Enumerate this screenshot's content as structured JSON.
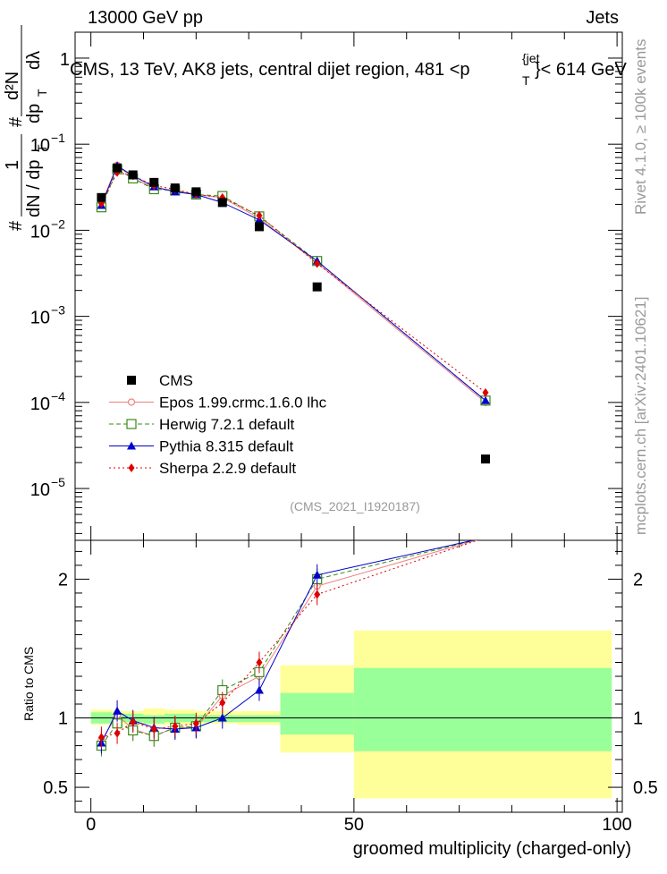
{
  "header": {
    "left": "13000 GeV pp",
    "right": "Jets"
  },
  "side_labels": {
    "rivet": "Rivet 4.1.0, ≥ 100k events",
    "mcplots": "mcplots.cern.ch [arXiv:2401.10621]"
  },
  "chart_data": {
    "type": "line",
    "title_main": "CMS, 13 TeV, AK8 jets, central dijet region, 481 <p",
    "title_sup": "{jet",
    "title_sub": "T",
    "title_end": "}< 614 GeV",
    "watermark": "(CMS_2021_I1920187)",
    "ylabel_top": {
      "frac1_num": "1",
      "frac1_den_a": "dN / dp",
      "frac1_den_sub": "T",
      "frac2_num": "d²N",
      "frac2_den_a": "dp",
      "frac2_den_sub": "T",
      "frac2_den_b": "dλ",
      "hash": "#"
    },
    "ylabel_ratio": "Ratio to CMS",
    "xlabel": "groomed multiplicity (charged-only)",
    "xlim": [
      -3,
      101
    ],
    "ylim_log": [
      2.5e-06,
      2
    ],
    "ylim_ratio": [
      0.32,
      2.28
    ],
    "x_ticks": [
      {
        "value": 0,
        "label": "0"
      },
      {
        "value": 50,
        "label": "50"
      },
      {
        "value": 100,
        "label": "100"
      }
    ],
    "y_ticks_log": [
      {
        "value": 1,
        "base": "1",
        "exp": ""
      },
      {
        "value": 0.1,
        "base": "10",
        "exp": "−1"
      },
      {
        "value": 0.01,
        "base": "10",
        "exp": "−2"
      },
      {
        "value": 0.001,
        "base": "10",
        "exp": "−3"
      },
      {
        "value": 0.0001,
        "base": "10",
        "exp": "−4"
      },
      {
        "value": 1e-05,
        "base": "10",
        "exp": "−5"
      }
    ],
    "y_ticks_ratio": [
      {
        "value": 0.5,
        "label": "0.5"
      },
      {
        "value": 1,
        "label": "1"
      },
      {
        "value": 2,
        "label": "2"
      }
    ],
    "bands": [
      {
        "x": [
          0,
          4
        ],
        "inner": [
          0.96,
          1.04
        ],
        "outer": [
          0.95,
          1.06
        ]
      },
      {
        "x": [
          4,
          10
        ],
        "inner": [
          0.97,
          1.03
        ],
        "outer": [
          0.95,
          1.05
        ]
      },
      {
        "x": [
          10,
          14
        ],
        "inner": [
          0.96,
          1.02
        ],
        "outer": [
          0.95,
          1.07
        ]
      },
      {
        "x": [
          14,
          20
        ],
        "inner": [
          0.97,
          1.03
        ],
        "outer": [
          0.95,
          1.06
        ]
      },
      {
        "x": [
          20,
          28
        ],
        "inner": [
          0.97,
          1.02
        ],
        "outer": [
          0.96,
          1.05
        ]
      },
      {
        "x": [
          28,
          36
        ],
        "inner": [
          0.97,
          1.02
        ],
        "outer": [
          0.95,
          1.05
        ]
      },
      {
        "x": [
          36,
          50
        ],
        "inner": [
          0.88,
          1.18
        ],
        "outer": [
          0.75,
          1.38
        ]
      },
      {
        "x": [
          50,
          99
        ],
        "inner": [
          0.76,
          1.36
        ],
        "outer": [
          0.42,
          1.63
        ]
      }
    ],
    "x": [
      2,
      5,
      8,
      12,
      16,
      20,
      25,
      32,
      43,
      75
    ],
    "cms": [
      0.024,
      0.053,
      0.044,
      0.036,
      0.031,
      0.028,
      0.021,
      0.011,
      0.0022,
      2.2e-05
    ],
    "series": [
      {
        "name": "Epos 1.99.crmc.1.6.0 lhc",
        "color": "#f08080",
        "marker": "circle-open",
        "dash": "",
        "values": [
          0.0205,
          0.057,
          0.04,
          0.031,
          0.029,
          0.026,
          0.024,
          0.0138,
          0.0042,
          0.0001
        ],
        "ratio": [
          0.84,
          1.02,
          0.92,
          0.87,
          0.93,
          0.93,
          1.16,
          1.3,
          1.95,
          2.3
        ]
      },
      {
        "name": "Herwig 7.2.1 default",
        "color": "#3a8a1a",
        "marker": "square-open",
        "dash": "5,3",
        "values": [
          0.0185,
          0.051,
          0.04,
          0.03,
          0.029,
          0.026,
          0.025,
          0.0145,
          0.0044,
          0.000105
        ],
        "ratio": [
          0.8,
          0.96,
          0.91,
          0.87,
          0.93,
          0.94,
          1.2,
          1.33,
          2.0,
          2.3
        ]
      },
      {
        "name": "Pythia 8.315 default",
        "color": "#0000cc",
        "marker": "triangle",
        "dash": "",
        "values": [
          0.0195,
          0.056,
          0.043,
          0.032,
          0.028,
          0.026,
          0.021,
          0.0132,
          0.0044,
          0.000105
        ],
        "ratio": [
          0.82,
          1.05,
          0.98,
          0.93,
          0.92,
          0.93,
          1.0,
          1.2,
          2.03,
          2.3
        ]
      },
      {
        "name": "Sherpa 2.2.9 default",
        "color": "#dd0000",
        "marker": "diamond",
        "dash": "2,3",
        "values": [
          0.0205,
          0.047,
          0.043,
          0.033,
          0.03,
          0.026,
          0.024,
          0.0148,
          0.0041,
          0.00013
        ],
        "ratio": [
          0.86,
          0.89,
          0.97,
          0.92,
          0.94,
          0.96,
          1.11,
          1.4,
          1.89,
          2.3
        ]
      }
    ],
    "legend_cms": "CMS"
  }
}
